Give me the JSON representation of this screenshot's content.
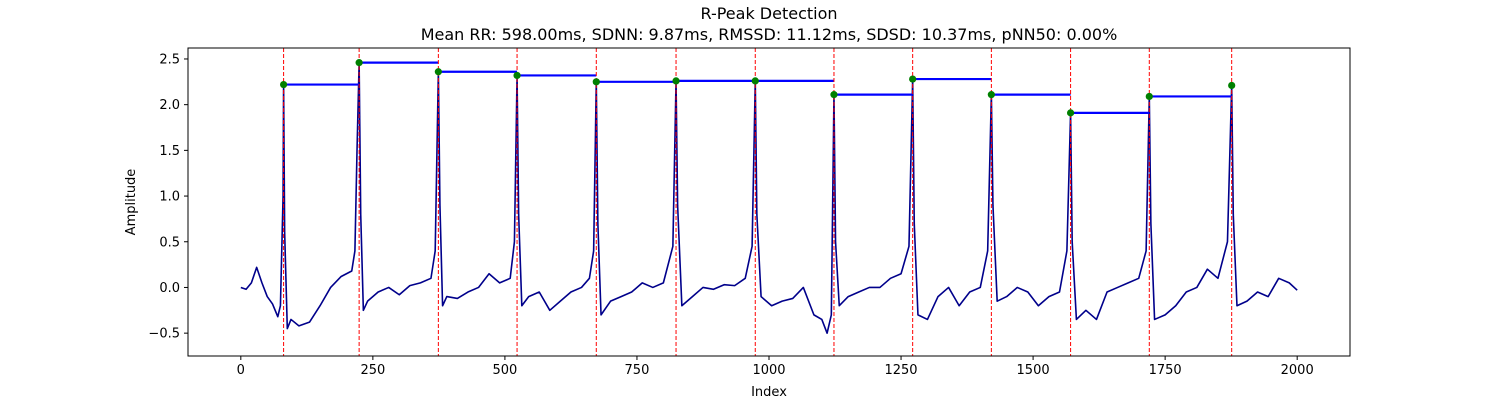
{
  "chart_data": {
    "type": "line",
    "title": "R-Peak Detection",
    "subtitle": "Mean RR: 598.00ms, SDNN: 9.87ms, RMSSD: 11.12ms, SDSD: 10.37ms, pNN50: 0.00%",
    "xlabel": "Index",
    "ylabel": "Amplitude",
    "xlim": [
      -100,
      2100
    ],
    "ylim": [
      -0.75,
      2.62
    ],
    "xticks": [
      0,
      250,
      500,
      750,
      1000,
      1250,
      1500,
      1750,
      2000
    ],
    "yticks": [
      -0.5,
      0.0,
      0.5,
      1.0,
      1.5,
      2.0,
      2.5
    ],
    "xtick_labels": [
      "0",
      "250",
      "500",
      "750",
      "1000",
      "1250",
      "1500",
      "1750",
      "2000"
    ],
    "ytick_labels": [
      "−0.5",
      "0.0",
      "0.5",
      "1.0",
      "1.5",
      "2.0",
      "2.5"
    ],
    "grid": false,
    "colors": {
      "signal": "#00008b",
      "peak_marker": "#008000",
      "peak_line": "#ff0000",
      "rr_bar": "#0000ff"
    },
    "r_peaks": {
      "x": [
        81,
        224,
        374,
        523,
        673,
        824,
        974,
        1123,
        1272,
        1421,
        1571,
        1720,
        1876
      ],
      "y": [
        2.22,
        2.46,
        2.36,
        2.32,
        2.25,
        2.26,
        2.26,
        2.11,
        2.28,
        2.11,
        1.91,
        2.09,
        2.21
      ]
    },
    "signal": {
      "x": [
        0,
        10,
        20,
        30,
        40,
        50,
        60,
        70,
        75,
        80,
        81,
        83,
        88,
        95,
        110,
        130,
        150,
        170,
        190,
        200,
        210,
        216,
        220,
        224,
        227,
        232,
        240,
        260,
        280,
        300,
        320,
        340,
        360,
        368,
        374,
        377,
        382,
        390,
        410,
        430,
        450,
        470,
        490,
        510,
        518,
        523,
        526,
        532,
        545,
        565,
        585,
        605,
        625,
        645,
        660,
        668,
        673,
        676,
        682,
        700,
        720,
        740,
        760,
        780,
        800,
        818,
        824,
        827,
        835,
        855,
        875,
        895,
        915,
        935,
        955,
        968,
        974,
        977,
        985,
        1005,
        1025,
        1045,
        1065,
        1085,
        1100,
        1110,
        1118,
        1123,
        1126,
        1133,
        1150,
        1170,
        1190,
        1210,
        1230,
        1250,
        1265,
        1272,
        1275,
        1282,
        1300,
        1320,
        1340,
        1360,
        1380,
        1400,
        1414,
        1421,
        1424,
        1432,
        1450,
        1470,
        1490,
        1510,
        1530,
        1550,
        1564,
        1571,
        1574,
        1582,
        1600,
        1620,
        1640,
        1660,
        1680,
        1700,
        1714,
        1720,
        1723,
        1730,
        1750,
        1770,
        1790,
        1810,
        1830,
        1850,
        1868,
        1876,
        1879,
        1886,
        1905,
        1925,
        1945,
        1965,
        1985,
        2000
      ],
      "y": [
        0.0,
        -0.02,
        0.05,
        0.22,
        0.05,
        -0.1,
        -0.18,
        -0.32,
        -0.2,
        1.0,
        2.22,
        0.6,
        -0.45,
        -0.35,
        -0.42,
        -0.38,
        -0.2,
        0.0,
        0.12,
        0.15,
        0.18,
        0.4,
        1.5,
        2.46,
        0.8,
        -0.25,
        -0.15,
        -0.05,
        0.0,
        -0.08,
        0.02,
        0.05,
        0.1,
        0.4,
        2.36,
        0.9,
        -0.2,
        -0.1,
        -0.12,
        -0.05,
        0.0,
        0.15,
        0.05,
        0.1,
        0.5,
        2.32,
        0.8,
        -0.2,
        -0.1,
        -0.05,
        -0.25,
        -0.15,
        -0.05,
        0.0,
        0.1,
        0.4,
        2.25,
        0.7,
        -0.3,
        -0.15,
        -0.1,
        -0.05,
        0.05,
        0.0,
        0.05,
        0.45,
        2.26,
        0.9,
        -0.2,
        -0.1,
        0.0,
        -0.02,
        0.03,
        0.02,
        0.1,
        0.45,
        2.26,
        0.8,
        -0.1,
        -0.2,
        -0.15,
        -0.12,
        0.0,
        -0.3,
        -0.35,
        -0.5,
        -0.3,
        2.11,
        0.5,
        -0.2,
        -0.1,
        -0.05,
        0.0,
        0.0,
        0.1,
        0.15,
        0.45,
        2.28,
        0.7,
        -0.3,
        -0.35,
        -0.1,
        0.0,
        -0.2,
        -0.05,
        0.0,
        0.4,
        2.11,
        0.9,
        -0.15,
        -0.1,
        0.0,
        -0.05,
        -0.2,
        -0.1,
        -0.05,
        0.4,
        1.91,
        0.5,
        -0.35,
        -0.25,
        -0.35,
        -0.05,
        0.0,
        0.05,
        0.1,
        0.4,
        2.09,
        0.7,
        -0.35,
        -0.3,
        -0.2,
        -0.05,
        0.0,
        0.2,
        0.1,
        0.5,
        2.21,
        0.8,
        -0.2,
        -0.15,
        -0.05,
        -0.1,
        0.1,
        0.05,
        -0.03
      ]
    }
  }
}
